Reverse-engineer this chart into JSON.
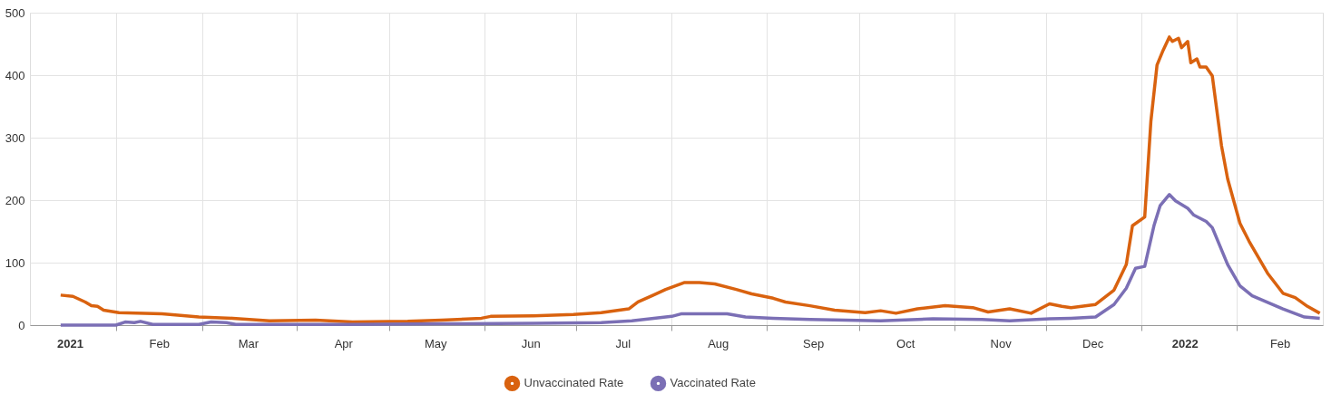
{
  "chart_data": {
    "type": "line",
    "xlim": [
      "2021-01-04",
      "2022-03-01"
    ],
    "xticks": [
      {
        "value": "2021-02-01",
        "label": null
      },
      {
        "value": "2021-03-01",
        "label": null
      },
      {
        "value": "2021-04-01",
        "label": null
      },
      {
        "value": "2021-05-01",
        "label": null
      },
      {
        "value": "2021-06-01",
        "label": null
      },
      {
        "value": "2021-07-01",
        "label": null
      },
      {
        "value": "2021-08-01",
        "label": null
      },
      {
        "value": "2021-09-01",
        "label": null
      },
      {
        "value": "2021-10-01",
        "label": null
      },
      {
        "value": "2021-11-01",
        "label": null
      },
      {
        "value": "2021-12-01",
        "label": null
      },
      {
        "value": "2022-01-01",
        "label": null
      },
      {
        "value": "2022-02-01",
        "label": null
      },
      {
        "value": "2021-01-17",
        "label": "2021"
      },
      {
        "value": "2021-02-15",
        "label": "Feb"
      },
      {
        "value": "2021-03-16",
        "label": "Mar"
      },
      {
        "value": "2021-04-16",
        "label": "Apr"
      },
      {
        "value": "2021-05-16",
        "label": "May"
      },
      {
        "value": "2021-06-16",
        "label": "Jun"
      },
      {
        "value": "2021-07-16",
        "label": "Jul"
      },
      {
        "value": "2021-08-16",
        "label": "Aug"
      },
      {
        "value": "2021-09-16",
        "label": "Sep"
      },
      {
        "value": "2021-10-16",
        "label": "Oct"
      },
      {
        "value": "2021-11-16",
        "label": "Nov"
      },
      {
        "value": "2021-12-16",
        "label": "Dec"
      },
      {
        "value": "2022-01-15",
        "label": "2022"
      },
      {
        "value": "2022-02-15",
        "label": "Feb"
      }
    ],
    "ylim": [
      0,
      500
    ],
    "yticks": [
      0,
      100,
      200,
      300,
      400,
      500
    ],
    "grid": true,
    "legend": "bottom",
    "line_style": "solid",
    "series": [
      {
        "name": "Unvaccinated Rate",
        "color": "#d9620f",
        "x": [
          "2021-01-14",
          "2021-01-18",
          "2021-01-22",
          "2021-01-24",
          "2021-01-26",
          "2021-01-28",
          "2021-02-02",
          "2021-02-16",
          "2021-02-28",
          "2021-03-11",
          "2021-03-23",
          "2021-04-07",
          "2021-04-19",
          "2021-05-07",
          "2021-05-18",
          "2021-05-31",
          "2021-06-03",
          "2021-06-17",
          "2021-06-30",
          "2021-07-09",
          "2021-07-18",
          "2021-07-21",
          "2021-07-26",
          "2021-07-30",
          "2021-08-05",
          "2021-08-10",
          "2021-08-15",
          "2021-08-22",
          "2021-08-27",
          "2021-09-03",
          "2021-09-07",
          "2021-09-15",
          "2021-09-23",
          "2021-10-03",
          "2021-10-08",
          "2021-10-13",
          "2021-10-20",
          "2021-10-29",
          "2021-11-07",
          "2021-11-12",
          "2021-11-19",
          "2021-11-26",
          "2021-12-02",
          "2021-12-06",
          "2021-12-09",
          "2021-12-17",
          "2021-12-23",
          "2021-12-27",
          "2021-12-29",
          "2022-01-02",
          "2022-01-04",
          "2022-01-06",
          "2022-01-08",
          "2022-01-10",
          "2022-01-11",
          "2022-01-13",
          "2022-01-14",
          "2022-01-16",
          "2022-01-17",
          "2022-01-19",
          "2022-01-20",
          "2022-01-22",
          "2022-01-24",
          "2022-01-27",
          "2022-01-29",
          "2022-02-02",
          "2022-02-05",
          "2022-02-11",
          "2022-02-16",
          "2022-02-20",
          "2022-02-24",
          "2022-02-28"
        ],
        "values": [
          48,
          46,
          37,
          31,
          30,
          24,
          20,
          18,
          13,
          11,
          7,
          8,
          5,
          6,
          8,
          11,
          14,
          15,
          17,
          20,
          26,
          37,
          48,
          57,
          68,
          68,
          66,
          57,
          50,
          43,
          37,
          31,
          24,
          20,
          23,
          19,
          26,
          31,
          28,
          21,
          26,
          19,
          34,
          30,
          28,
          33,
          56,
          97,
          159,
          173,
          326,
          416,
          440,
          461,
          454,
          459,
          444,
          454,
          420,
          426,
          413,
          413,
          399,
          287,
          234,
          163,
          134,
          83,
          51,
          44,
          30,
          19
        ]
      },
      {
        "name": "Vaccinated Rate",
        "color": "#7b6fb5",
        "x": [
          "2021-01-14",
          "2021-02-01",
          "2021-02-04",
          "2021-02-07",
          "2021-02-09",
          "2021-02-13",
          "2021-02-28",
          "2021-03-04",
          "2021-03-09",
          "2021-03-12",
          "2021-04-19",
          "2021-05-18",
          "2021-06-17",
          "2021-07-09",
          "2021-07-19",
          "2021-08-01",
          "2021-08-04",
          "2021-08-19",
          "2021-08-25",
          "2021-09-03",
          "2021-09-15",
          "2021-10-08",
          "2021-10-25",
          "2021-11-10",
          "2021-11-19",
          "2021-12-02",
          "2021-12-09",
          "2021-12-17",
          "2021-12-23",
          "2021-12-27",
          "2021-12-30",
          "2022-01-02",
          "2022-01-05",
          "2022-01-07",
          "2022-01-10",
          "2022-01-12",
          "2022-01-16",
          "2022-01-18",
          "2022-01-22",
          "2022-01-24",
          "2022-01-29",
          "2022-02-02",
          "2022-02-06",
          "2022-02-16",
          "2022-02-23",
          "2022-02-28"
        ],
        "values": [
          0,
          0,
          5,
          4,
          6,
          1,
          1,
          5,
          4,
          1,
          1,
          2,
          3,
          4,
          7,
          14,
          18,
          18,
          13,
          11,
          9,
          7,
          10,
          9,
          7,
          10,
          11,
          13,
          33,
          59,
          91,
          94,
          159,
          191,
          209,
          199,
          187,
          176,
          166,
          156,
          97,
          63,
          47,
          26,
          13,
          11
        ]
      }
    ]
  }
}
